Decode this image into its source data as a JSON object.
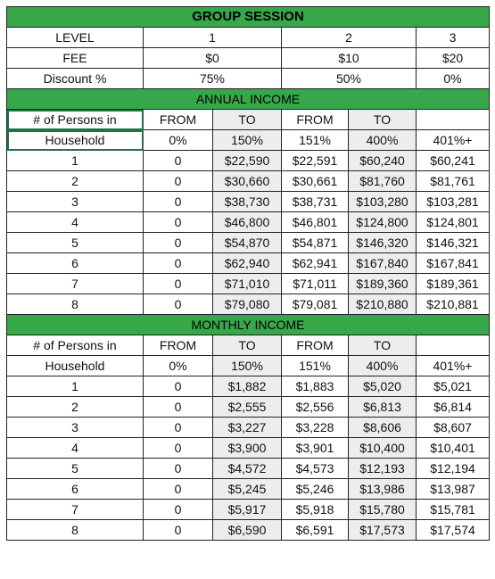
{
  "group_session": {
    "title": "GROUP SESSION",
    "rows": [
      {
        "label": "LEVEL",
        "values": [
          "1",
          "2",
          "3"
        ]
      },
      {
        "label": "FEE",
        "values": [
          "$0",
          "$10",
          "$20"
        ]
      },
      {
        "label": "Discount %",
        "values": [
          "75%",
          "50%",
          "0%"
        ]
      }
    ]
  },
  "annual": {
    "title": "ANNUAL INCOME",
    "header1": {
      "persons": "# of Persons in",
      "c1": "FROM",
      "c2": "TO",
      "c3": "FROM",
      "c4": "TO",
      "c5": ""
    },
    "header2": {
      "persons": "Household",
      "c1": "0%",
      "c2": "150%",
      "c3": "151%",
      "c4": "400%",
      "c5": "401%+"
    },
    "rows": [
      [
        "1",
        "0",
        "$22,590",
        "$22,591",
        "$60,240",
        "$60,241"
      ],
      [
        "2",
        "0",
        "$30,660",
        "$30,661",
        "$81,760",
        "$81,761"
      ],
      [
        "3",
        "0",
        "$38,730",
        "$38,731",
        "$103,280",
        "$103,281"
      ],
      [
        "4",
        "0",
        "$46,800",
        "$46,801",
        "$124,800",
        "$124,801"
      ],
      [
        "5",
        "0",
        "$54,870",
        "$54,871",
        "$146,320",
        "$146,321"
      ],
      [
        "6",
        "0",
        "$62,940",
        "$62,941",
        "$167,840",
        "$167,841"
      ],
      [
        "7",
        "0",
        "$71,010",
        "$71,011",
        "$189,360",
        "$189,361"
      ],
      [
        "8",
        "0",
        "$79,080",
        "$79,081",
        "$210,880",
        "$210,881"
      ]
    ]
  },
  "monthly": {
    "title": "MONTHLY INCOME",
    "header1": {
      "persons": "# of Persons in",
      "c1": "FROM",
      "c2": "TO",
      "c3": "FROM",
      "c4": "TO",
      "c5": ""
    },
    "header2": {
      "persons": "Household",
      "c1": "0%",
      "c2": "150%",
      "c3": "151%",
      "c4": "400%",
      "c5": "401%+"
    },
    "rows": [
      [
        "1",
        "0",
        "$1,882",
        "$1,883",
        "$5,020",
        "$5,021"
      ],
      [
        "2",
        "0",
        "$2,555",
        "$2,556",
        "$6,813",
        "$6,814"
      ],
      [
        "3",
        "0",
        "$3,227",
        "$3,228",
        "$8,606",
        "$8,607"
      ],
      [
        "4",
        "0",
        "$3,900",
        "$3,901",
        "$10,400",
        "$10,401"
      ],
      [
        "5",
        "0",
        "$4,572",
        "$4,573",
        "$12,193",
        "$12,194"
      ],
      [
        "6",
        "0",
        "$5,245",
        "$5,246",
        "$13,986",
        "$13,987"
      ],
      [
        "7",
        "0",
        "$5,917",
        "$5,918",
        "$15,780",
        "$15,781"
      ],
      [
        "8",
        "0",
        "$6,590",
        "$6,591",
        "$17,573",
        "$17,574"
      ]
    ]
  },
  "colors": {
    "header_green": "#37a84a",
    "shade_gray": "#ededed",
    "selection": "#217346"
  }
}
